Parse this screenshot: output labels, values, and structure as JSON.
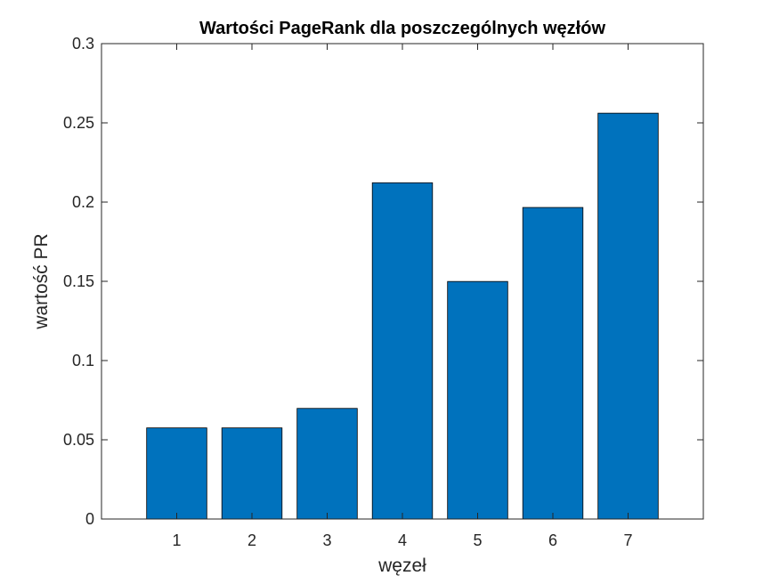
{
  "chart_data": {
    "type": "bar",
    "title": "Wartości PageRank dla poszczególnych węzłów",
    "xlabel": "węzeł",
    "ylabel": "wartość PR",
    "categories": [
      "1",
      "2",
      "3",
      "4",
      "5",
      "6",
      "7"
    ],
    "values": [
      0.0575,
      0.0575,
      0.0698,
      0.2122,
      0.1499,
      0.1966,
      0.2561
    ],
    "xlim": [
      0,
      8
    ],
    "ylim": [
      0,
      0.3
    ],
    "yticks": [
      0,
      0.05,
      0.1,
      0.15,
      0.2,
      0.25,
      0.3
    ],
    "ytick_labels": [
      "0",
      "0.05",
      "0.1",
      "0.15",
      "0.2",
      "0.25",
      "0.3"
    ],
    "grid": false,
    "bar_color": "#0072BD",
    "edge_color": "#000000"
  }
}
